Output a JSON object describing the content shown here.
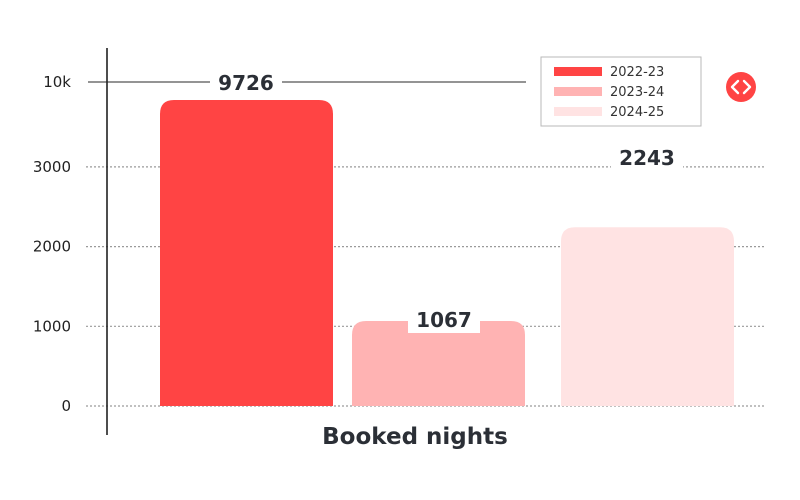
{
  "chart_data": {
    "type": "bar",
    "categories": [
      "Booked nights"
    ],
    "series": [
      {
        "name": "2022-23",
        "values": [
          9726
        ],
        "color": "#ff4444"
      },
      {
        "name": "2023-24",
        "values": [
          1067
        ],
        "color": "#ffb3b3"
      },
      {
        "name": "2024-25",
        "values": [
          2243
        ],
        "color": "#ffe3e3"
      }
    ],
    "yticks": [
      {
        "label": "0",
        "value": 0
      },
      {
        "label": "1000",
        "value": 1000
      },
      {
        "label": "2000",
        "value": 2000
      },
      {
        "label": "3000",
        "value": 3000
      },
      {
        "label": "10k",
        "value": 10000
      }
    ],
    "yscale": "broken",
    "ylim": [
      0,
      10000
    ],
    "grid": true,
    "legend": "top-right",
    "title": "",
    "xlabel": "",
    "ylabel": ""
  },
  "icons": {
    "corner": "code-brackets-icon",
    "corner_color": "#ff4444"
  }
}
